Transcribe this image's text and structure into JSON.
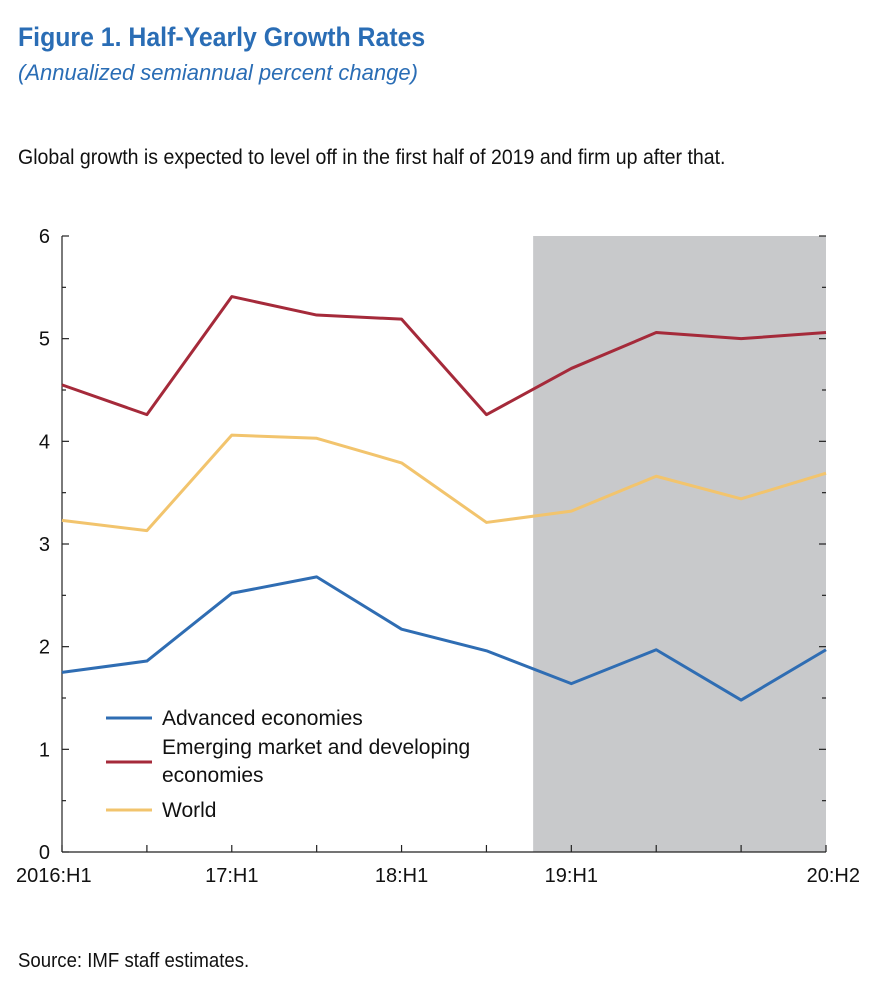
{
  "figure": {
    "title": "Figure 1.  Half-Yearly Growth Rates",
    "subtitle": "(Annualized semiannual percent change)",
    "caption": "Global growth is expected to level off in the first half of 2019 and firm up after that.",
    "source": "Source: IMF staff estimates."
  },
  "colors": {
    "advanced": "#2f6db3",
    "emerging": "#a52a3a",
    "world": "#f2c46d",
    "projection_shade": "#c8c9cb"
  },
  "chart_data": {
    "type": "line",
    "x": [
      "2016:H1",
      "2016:H2",
      "17:H1",
      "17:H2",
      "18:H1",
      "18:H2",
      "19:H1",
      "19:H2",
      "20:H1",
      "20:H2"
    ],
    "tick_labels": [
      "2016:H1",
      "",
      "17:H1",
      "",
      "18:H1",
      "",
      "19:H1",
      "",
      "",
      "20:H2"
    ],
    "ylim": [
      0,
      6
    ],
    "yticks_major": [
      0,
      1,
      2,
      3,
      4,
      5,
      6
    ],
    "shaded_region": {
      "from": "18:H2-19:H1 midpoint",
      "start_index": 5.55,
      "end_index": 9,
      "meaning": "projection"
    },
    "legend_position": "bottom-left",
    "series": [
      {
        "name": "Advanced economies",
        "key": "advanced",
        "values": [
          1.75,
          1.86,
          2.52,
          2.68,
          2.17,
          1.96,
          1.64,
          1.97,
          1.48,
          1.97
        ]
      },
      {
        "name": "Emerging market and developing economies",
        "key": "emerging",
        "legend_lines": [
          "Emerging market and developing",
          "economies"
        ],
        "values": [
          4.55,
          4.26,
          5.41,
          5.23,
          5.19,
          4.26,
          4.71,
          5.06,
          5.0,
          5.06
        ]
      },
      {
        "name": "World",
        "key": "world",
        "values": [
          3.23,
          3.13,
          4.06,
          4.03,
          3.79,
          3.21,
          3.32,
          3.66,
          3.44,
          3.69
        ]
      }
    ]
  }
}
